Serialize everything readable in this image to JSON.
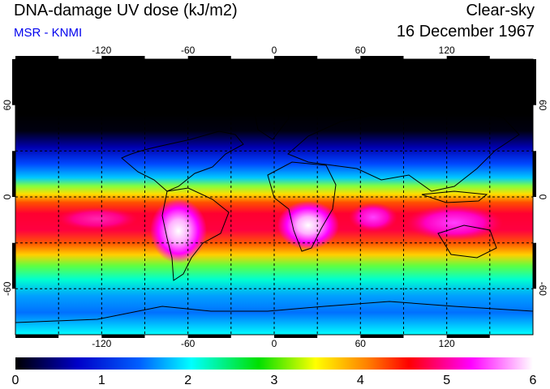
{
  "header": {
    "title": "DNA-damage UV dose (kJ/m2)",
    "subtitle": "MSR - KNMI",
    "sky_condition": "Clear-sky",
    "date": "16 December 1967"
  },
  "map": {
    "projection": "equirectangular",
    "lon_range": [
      -180,
      180
    ],
    "lat_range": [
      -90,
      90
    ],
    "lon_tick_labels": [
      "-120",
      "-60",
      "0",
      "60",
      "120"
    ],
    "lat_tick_labels": [
      "60",
      "0",
      "-60"
    ],
    "graticule": "dashed",
    "coastlines": true
  },
  "colorbar": {
    "tick_labels": [
      "0",
      "1",
      "2",
      "3",
      "4",
      "5",
      "6"
    ],
    "range": [
      0,
      6
    ],
    "colors": [
      "#000000",
      "#0000c8",
      "#00ffff",
      "#00e000",
      "#ffff00",
      "#ff0000",
      "#ff00ff",
      "#ffffff"
    ]
  }
}
